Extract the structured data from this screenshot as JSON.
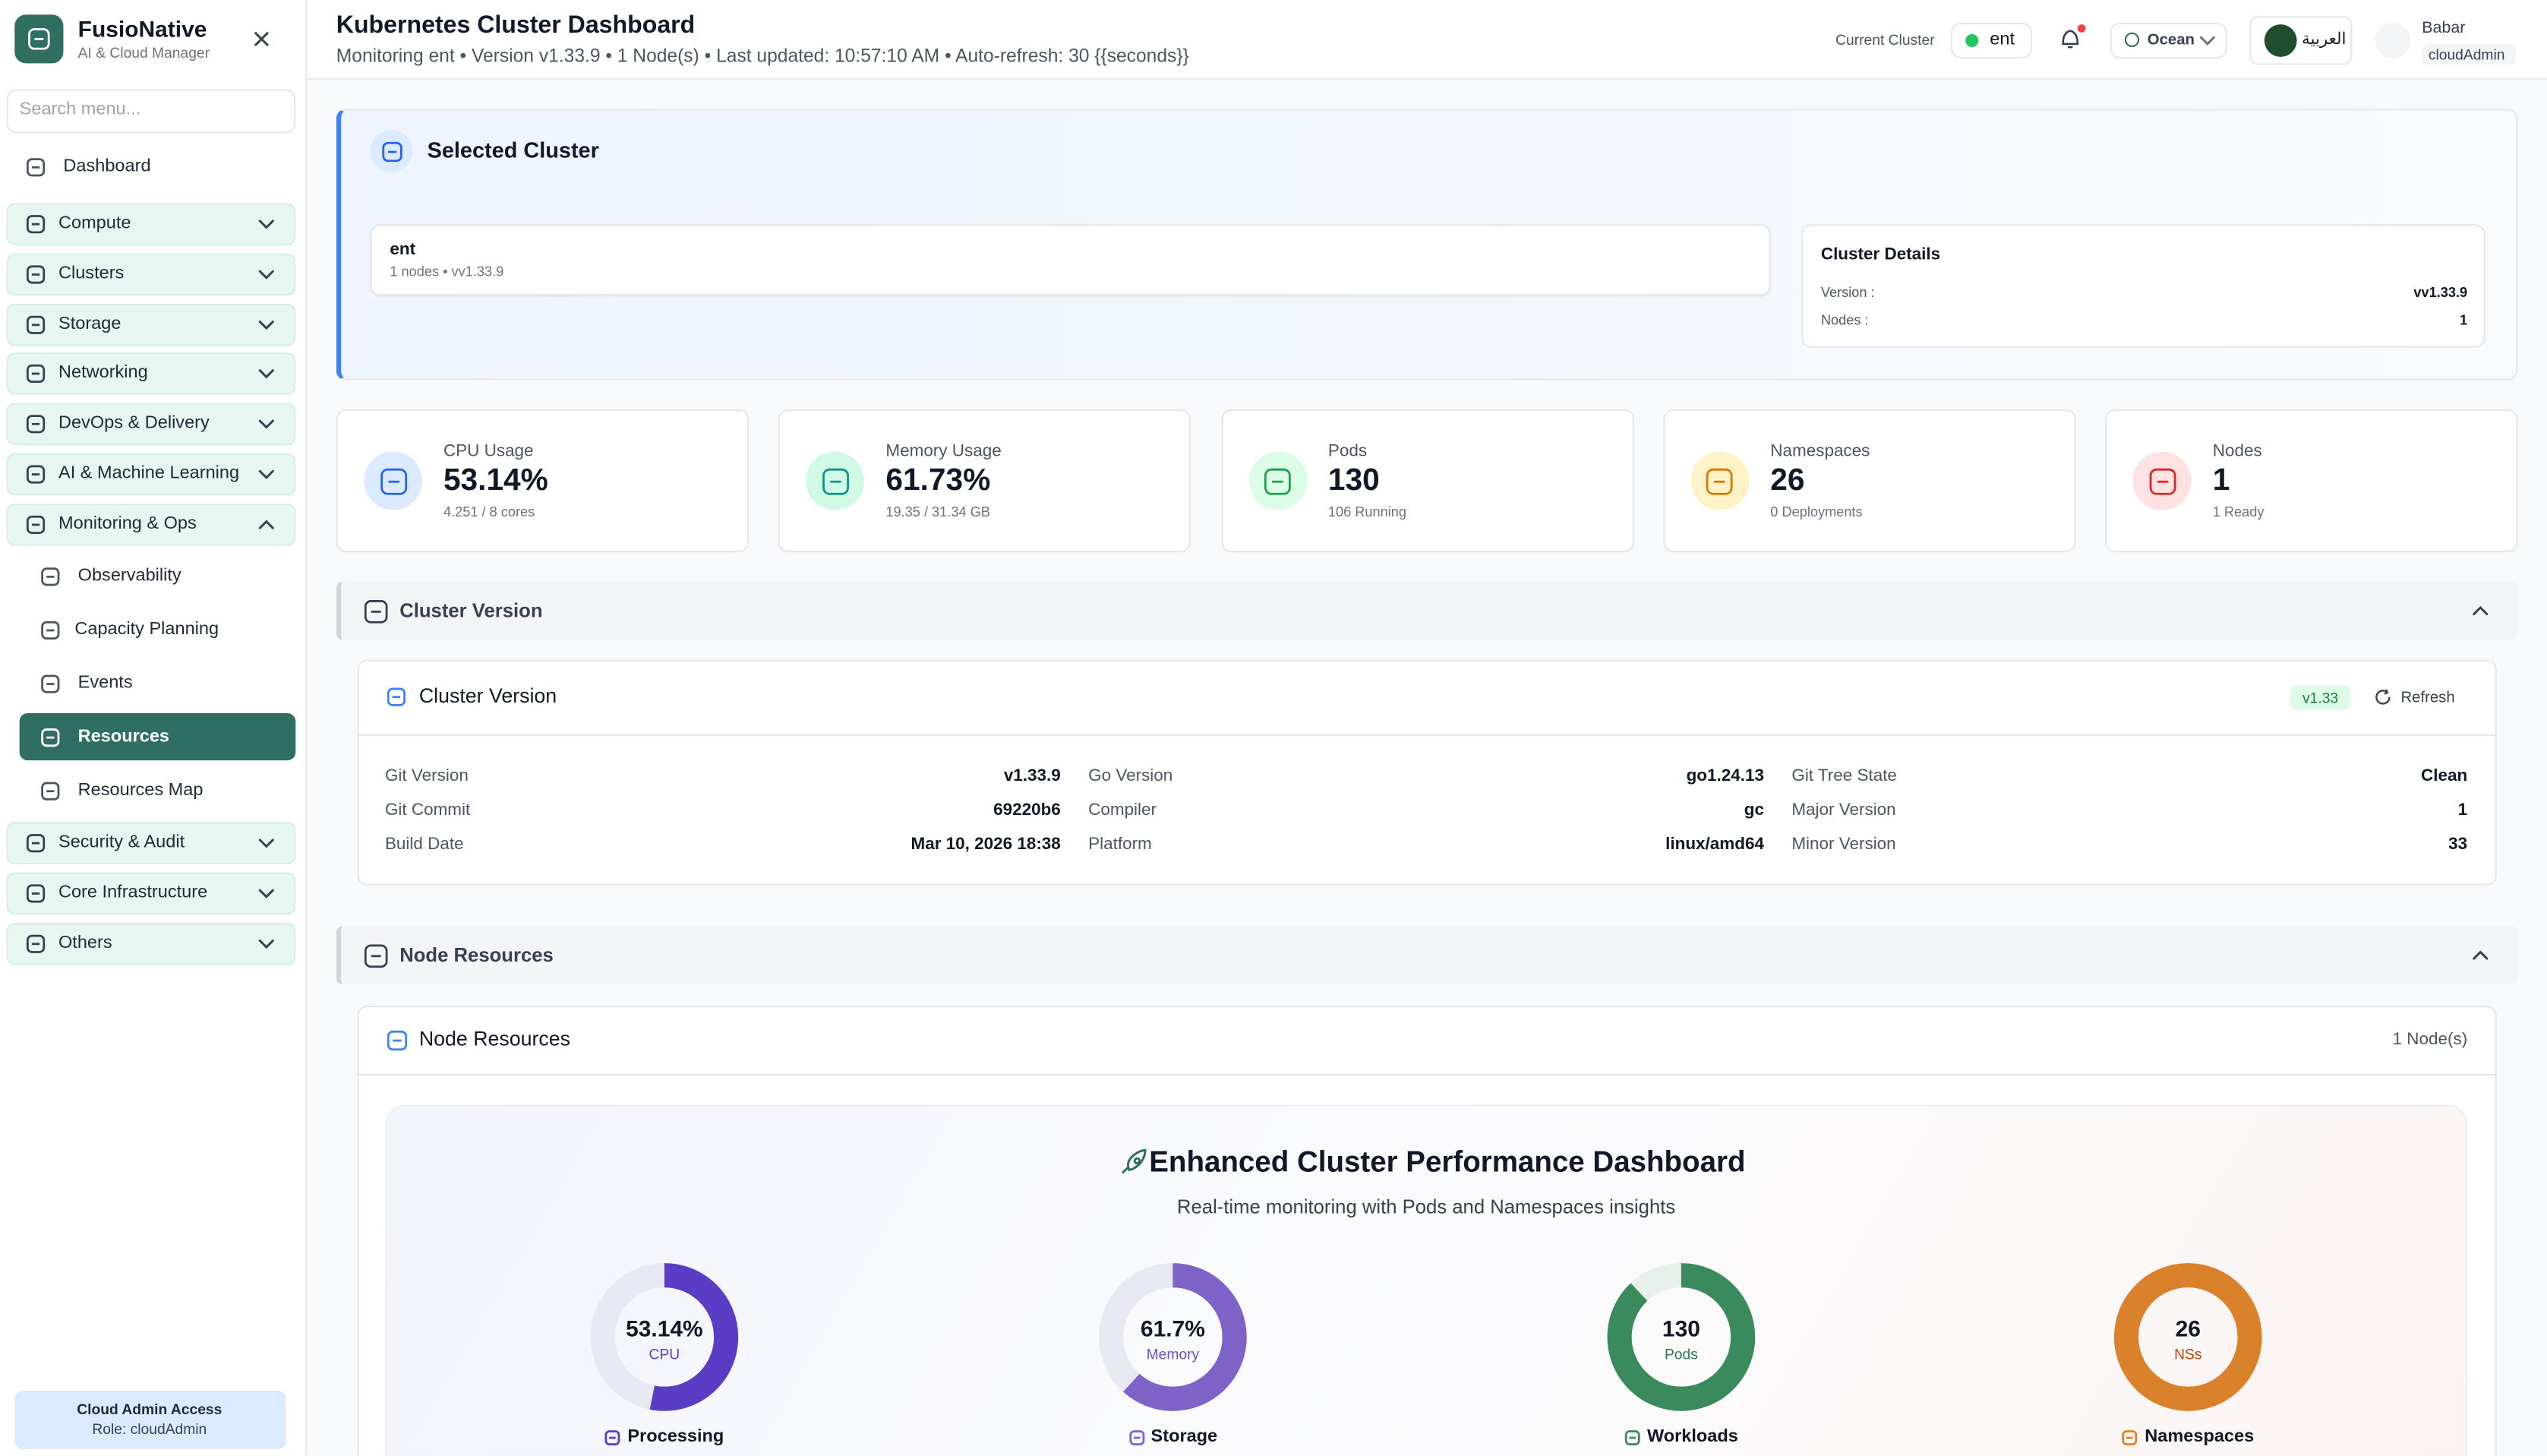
{
  "sidebar": {
    "brand": "FusioNative",
    "tagline": "AI & Cloud Manager",
    "search_placeholder": "Search menu...",
    "dashboard": "Dashboard",
    "groups_top": [
      "Compute",
      "Clusters",
      "Storage",
      "Networking",
      "DevOps & Delivery",
      "AI & Machine Learning",
      "Monitoring & Ops"
    ],
    "sub_items": [
      "Observability",
      "Capacity Planning",
      "Events",
      "Resources",
      "Resources Map"
    ],
    "groups_bottom": [
      "Security & Audit",
      "Core Infrastructure",
      "Others"
    ],
    "footer_title": "Cloud Admin Access",
    "footer_role": "Role: cloudAdmin"
  },
  "header": {
    "title": "Kubernetes Cluster Dashboard",
    "subtitle": "Monitoring ent • Version v1.33.9 • 1 Node(s) • Last updated: 10:57:10 AM • Auto-refresh: 30 {{seconds}}",
    "cluster_label": "Current Cluster",
    "cluster": "ent",
    "theme": "Ocean",
    "language": "العربية",
    "user": "Babar",
    "role": "cloudAdmin"
  },
  "selected_cluster": {
    "title": "Selected Cluster",
    "name": "ent",
    "meta": "1 nodes • vv1.33.9",
    "details_title": "Cluster Details",
    "details": [
      [
        "Version :",
        "vv1.33.9"
      ],
      [
        "Nodes :",
        "1"
      ]
    ]
  },
  "stats": [
    {
      "label": "CPU Usage",
      "value": "53.14%",
      "sub": "4.251 / 8 cores"
    },
    {
      "label": "Memory Usage",
      "value": "61.73%",
      "sub": "19.35 / 31.34 GB"
    },
    {
      "label": "Pods",
      "value": "130",
      "sub": "106 Running"
    },
    {
      "label": "Namespaces",
      "value": "26",
      "sub": "0 Deployments"
    },
    {
      "label": "Nodes",
      "value": "1",
      "sub": "1 Ready"
    }
  ],
  "cluster_version": {
    "section_title": "Cluster Version",
    "card_title": "Cluster Version",
    "badge": "v1.33",
    "refresh": "Refresh",
    "fields": [
      [
        "Git Version",
        "v1.33.9"
      ],
      [
        "Go Version",
        "go1.24.13"
      ],
      [
        "Git Tree State",
        "Clean"
      ],
      [
        "Git Commit",
        "69220b6"
      ],
      [
        "Compiler",
        "gc"
      ],
      [
        "Major Version",
        "1"
      ],
      [
        "Build Date",
        "Mar 10, 2026 18:38"
      ],
      [
        "Platform",
        "linux/amd64"
      ],
      [
        "Minor Version",
        "33"
      ]
    ]
  },
  "node_resources": {
    "section_title": "Node Resources",
    "card_title": "Node Resources",
    "count": "1 Node(s)",
    "panel_title": "Enhanced Cluster Performance Dashboard",
    "panel_subtitle": "Real-time monitoring with Pods and Namespaces insights",
    "gauges": [
      {
        "value": 53.14,
        "value_label": "53.14%",
        "unit": "CPU",
        "caption": "Processing"
      },
      {
        "value": 61.7,
        "value_label": "61.7%",
        "unit": "Memory",
        "caption": "Storage"
      },
      {
        "value": 130,
        "unit": "Pods",
        "caption": "Workloads"
      },
      {
        "value": 26,
        "unit": "NSs",
        "caption": "Namespaces"
      }
    ]
  }
}
